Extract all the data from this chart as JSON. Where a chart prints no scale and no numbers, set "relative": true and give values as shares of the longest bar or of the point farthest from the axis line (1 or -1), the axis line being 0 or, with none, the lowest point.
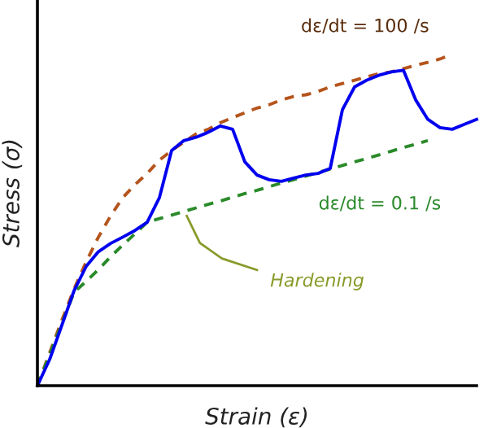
{
  "chart_data": {
    "type": "line",
    "relative": true,
    "xlabel": "Strain (ε)",
    "ylabel": "Stress (σ)",
    "line_style": "solid",
    "categories": [
      null,
      null,
      null,
      null,
      null,
      null,
      null,
      null,
      null,
      null,
      null,
      null,
      null,
      null,
      null,
      null,
      null,
      null,
      null,
      null,
      null,
      null,
      null,
      null,
      null,
      null,
      null,
      null,
      null,
      null,
      null,
      null,
      null,
      null,
      null,
      null,
      null
    ],
    "series": [
      {
        "color": "#b5541c",
        "line_style": "dashed",
        "values": [
          0,
          0.099,
          0.197,
          0.291,
          0.374,
          0.448,
          0.512,
          0.567,
          0.606,
          0.64,
          0.68,
          0.709,
          0.734,
          0.759,
          0.773,
          0.793,
          0.808,
          0.823,
          0.837,
          0.847,
          0.862,
          0.872,
          0.877,
          0.887,
          0.901,
          0.911,
          0.921,
          0.931,
          0.941,
          0.946,
          0.956,
          0.966,
          0.975,
          0.985,
          1.0,
          null,
          null
        ]
      },
      {
        "color": "#2a8a2a",
        "line_style": "dashed",
        "values": [
          0,
          0.094,
          0.187,
          0.281,
          0.315,
          0.35,
          0.389,
          0.424,
          0.458,
          0.493,
          0.504,
          0.514,
          0.525,
          0.536,
          0.547,
          0.557,
          0.568,
          0.579,
          0.589,
          0.6,
          0.611,
          0.621,
          0.632,
          0.643,
          0.653,
          0.664,
          0.675,
          0.685,
          0.696,
          0.707,
          0.718,
          0.728,
          0.739,
          null,
          null,
          null,
          null
        ]
      },
      {
        "color": "#0000ee",
        "values": [
          0,
          0.079,
          0.182,
          0.286,
          0.36,
          0.404,
          0.429,
          0.448,
          0.468,
          0.493,
          0.567,
          0.709,
          0.739,
          0.749,
          0.764,
          0.783,
          0.773,
          0.675,
          0.635,
          0.621,
          0.616,
          0.626,
          0.635,
          0.64,
          0.655,
          0.832,
          0.901,
          0.921,
          0.936,
          0.946,
          0.951,
          0.862,
          0.803,
          0.778,
          0.773,
          0.788,
          0.803
        ]
      }
    ],
    "annotations": [
      "dε/dt = 100 /s",
      "dε/dt = 0.1 /s",
      "Hardening"
    ]
  }
}
